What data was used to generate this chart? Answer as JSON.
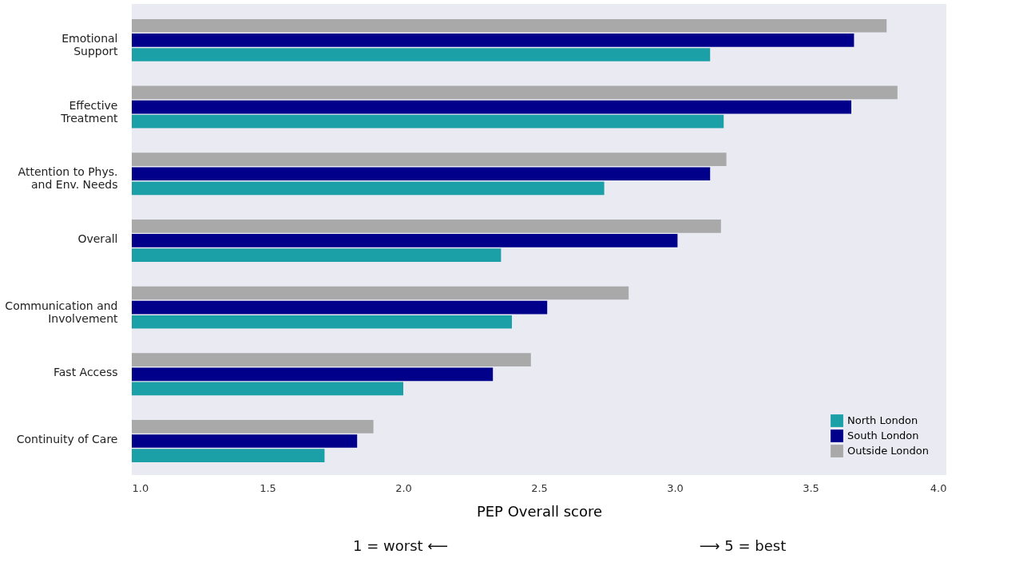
{
  "chart_data": {
    "type": "bar",
    "orientation": "horizontal",
    "categories": [
      "Emotional\nSupport",
      "Effective\nTreatment",
      "Attention to Phys.\nand Env. Needs",
      "Overall",
      "Communication and\nInvolvement",
      "Fast Access",
      "Continuity of Care"
    ],
    "series": [
      {
        "name": "North London",
        "color": "#1aa0a6",
        "values": [
          3.13,
          3.18,
          2.74,
          2.36,
          2.4,
          2.0,
          1.71
        ]
      },
      {
        "name": "South London",
        "color": "#00008b",
        "values": [
          3.66,
          3.65,
          3.13,
          3.01,
          2.53,
          2.33,
          1.83
        ]
      },
      {
        "name": "Outside London",
        "color": "#a9a9a9",
        "values": [
          3.78,
          3.82,
          3.19,
          3.17,
          2.83,
          2.47,
          1.89
        ]
      }
    ],
    "xlim": [
      1.0,
      4.0
    ],
    "xticks": [
      {
        "value": 1.0,
        "label": "1.0"
      },
      {
        "value": 1.5,
        "label": "1.5"
      },
      {
        "value": 2.0,
        "label": "2.0"
      },
      {
        "value": 2.5,
        "label": "2.5"
      },
      {
        "value": 3.0,
        "label": "3.0"
      },
      {
        "value": 3.5,
        "label": "3.5"
      },
      {
        "value": 4.0,
        "label": "4.0"
      }
    ],
    "xlabel": "PEP Overall score",
    "annotations": [
      "1 = worst ⟵",
      "⟶ 5 = best"
    ],
    "grid": false,
    "legend": "bottom right"
  }
}
